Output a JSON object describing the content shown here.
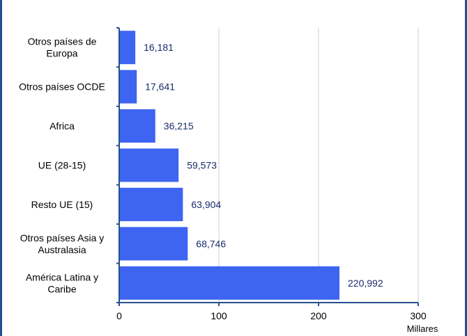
{
  "colors": {
    "bar": "#3e64f2",
    "grid": "#cfcfcf",
    "axis": "#24508f",
    "frame": "#24508f",
    "data_label": "#1a2a6c"
  },
  "chart_data": {
    "type": "bar",
    "orientation": "horizontal",
    "categories": [
      [
        "Otros países de",
        "Europa"
      ],
      [
        "Otros países OCDE"
      ],
      [
        "Africa"
      ],
      [
        "UE (28-15)"
      ],
      [
        "Resto UE (15)"
      ],
      [
        "Otros países Asia y",
        "Australasia"
      ],
      [
        "América Latina y",
        "Caribe"
      ]
    ],
    "values": [
      16.181,
      17.641,
      36.215,
      59.573,
      63.904,
      68.746,
      220.992
    ],
    "data_labels": [
      "16,181",
      "17,641",
      "36,215",
      "59,573",
      "63,904",
      "68,746",
      "220,992"
    ],
    "xlim": [
      0,
      300
    ],
    "xticks": [
      0,
      100,
      200,
      300
    ],
    "xtick_labels": [
      "0",
      "100",
      "200",
      "300"
    ],
    "unit_label": "Millares",
    "grid": "vertical",
    "legend": "none"
  }
}
